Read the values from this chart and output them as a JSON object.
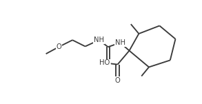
{
  "background": "#ffffff",
  "line_color": "#3a3a3a",
  "figsize": [
    2.93,
    1.51
  ],
  "dpi": 100,
  "xlim": [
    0,
    293
  ],
  "ylim": [
    0,
    151
  ]
}
